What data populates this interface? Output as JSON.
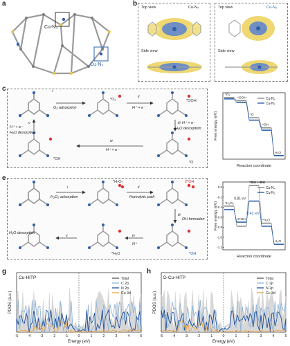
{
  "panels": {
    "a": {
      "label": "a",
      "site_n4": "Cu-N₄",
      "site_n2": "Cu-N₂"
    },
    "b": {
      "label": "b",
      "left_top": "Top view",
      "left_species": "Cu-N₄",
      "left_side": "Side view",
      "right_top": "Top view",
      "right_species": "Cu-N₂",
      "right_side": "Side view"
    },
    "c": {
      "label": "c",
      "species": [
        "*O₂",
        "*OOH",
        "*O",
        "*OH"
      ],
      "steps": [
        {
          "num": "i",
          "text": "O₂ adsorption"
        },
        {
          "num": "ii",
          "text": "H⁺ + e⁻"
        },
        {
          "num": "iii",
          "text": "H⁺ + e⁻"
        },
        {
          "num": "iii_sub",
          "text": "H₂O desorption"
        },
        {
          "num": "iv",
          "text": "H⁺ + e⁻"
        },
        {
          "num": "v",
          "text": "H⁺ + e⁻"
        },
        {
          "num": "v_sub",
          "text": "H₂O desorption"
        }
      ]
    },
    "e": {
      "label": "e",
      "species": [
        "*H₂O₂",
        "2*OH",
        "*OH",
        "*H₂O"
      ],
      "steps": [
        {
          "num": "i",
          "text": "H₂O₂ adsorption"
        },
        {
          "num": "ii",
          "text": "Homolytic path"
        },
        {
          "num": "iii",
          "text": "·OH formation"
        },
        {
          "num": "iv",
          "text": "H⁺"
        },
        {
          "num": "v",
          "text": "H₂O desorption"
        }
      ]
    },
    "g": {
      "label": "g",
      "title": "Cu-HITP"
    },
    "h": {
      "label": "h",
      "title": "D-Cu-HITP"
    }
  },
  "chart_data": [
    {
      "panel": "d",
      "type": "line",
      "xlabel": "Reaction coordinate",
      "ylabel": "Free energy (eV)",
      "states": [
        "*O₂",
        "*OOH",
        "*O",
        "*OH",
        "H₂O"
      ],
      "series": [
        {
          "name": "Cu-N₄",
          "color": "#8a8a8a",
          "values": [
            4.92,
            4.65,
            3.2,
            2.35,
            0.0
          ]
        },
        {
          "name": "Cu-N₂",
          "color": "#2a62a8",
          "values": [
            4.8,
            4.5,
            3.0,
            2.15,
            0.0
          ]
        }
      ]
    },
    {
      "panel": "f",
      "type": "line",
      "xlabel": "Reaction coordinate",
      "ylabel": "Free energy (eV)",
      "yticks": [
        0.0,
        -0.2,
        -0.4,
        -0.6,
        -0.8,
        -1.0,
        -1.2
      ],
      "ylim": [
        -1.25,
        0.1
      ],
      "states": [
        "*H₂O₂",
        "2*OH",
        "*OH+·OH",
        "*H₂O",
        "H₂O"
      ],
      "annotations": [
        "*OH + ·OH",
        "0.81 eV",
        "0.42 eV"
      ],
      "series": [
        {
          "name": "Cu-N₄",
          "color": "#8a8a8a",
          "values": [
            -0.38,
            -0.78,
            0.03,
            -0.72,
            -1.14
          ]
        },
        {
          "name": "Cu-N₂",
          "color": "#2a62a8",
          "values": [
            -0.45,
            -0.7,
            -0.28,
            -0.78,
            -1.14
          ]
        }
      ]
    },
    {
      "panel": "g",
      "type": "area",
      "title": "Cu-HITP",
      "xlabel": "Energy (eV)",
      "ylabel": "PDOS (a.u.)",
      "xlim": [
        -5,
        5
      ],
      "xticks": [
        -5,
        -4,
        -3,
        -2,
        -1,
        0,
        1,
        2,
        3,
        4,
        5
      ],
      "series": [
        {
          "name": "Total",
          "color": "#c8c8c8"
        },
        {
          "name": "C 2p",
          "color": "#8fb4d9"
        },
        {
          "name": "N 2p",
          "color": "#1e4f99"
        },
        {
          "name": "Cu 3d",
          "color": "#f0a23c"
        }
      ]
    },
    {
      "panel": "h",
      "type": "area",
      "title": "D-Cu-HITP",
      "xlabel": "Energy (eV)",
      "ylabel": "PDOS (a.u.)",
      "xlim": [
        -5,
        5
      ],
      "xticks": [
        -5,
        -4,
        -3,
        -2,
        -1,
        0,
        1,
        2,
        3,
        4,
        5
      ],
      "series": [
        {
          "name": "Total",
          "color": "#c8c8c8"
        },
        {
          "name": "C 2p",
          "color": "#8fb4d9"
        },
        {
          "name": "N 2p",
          "color": "#1e4f99"
        },
        {
          "name": "Cu 3d",
          "color": "#f0a23c"
        }
      ]
    }
  ]
}
